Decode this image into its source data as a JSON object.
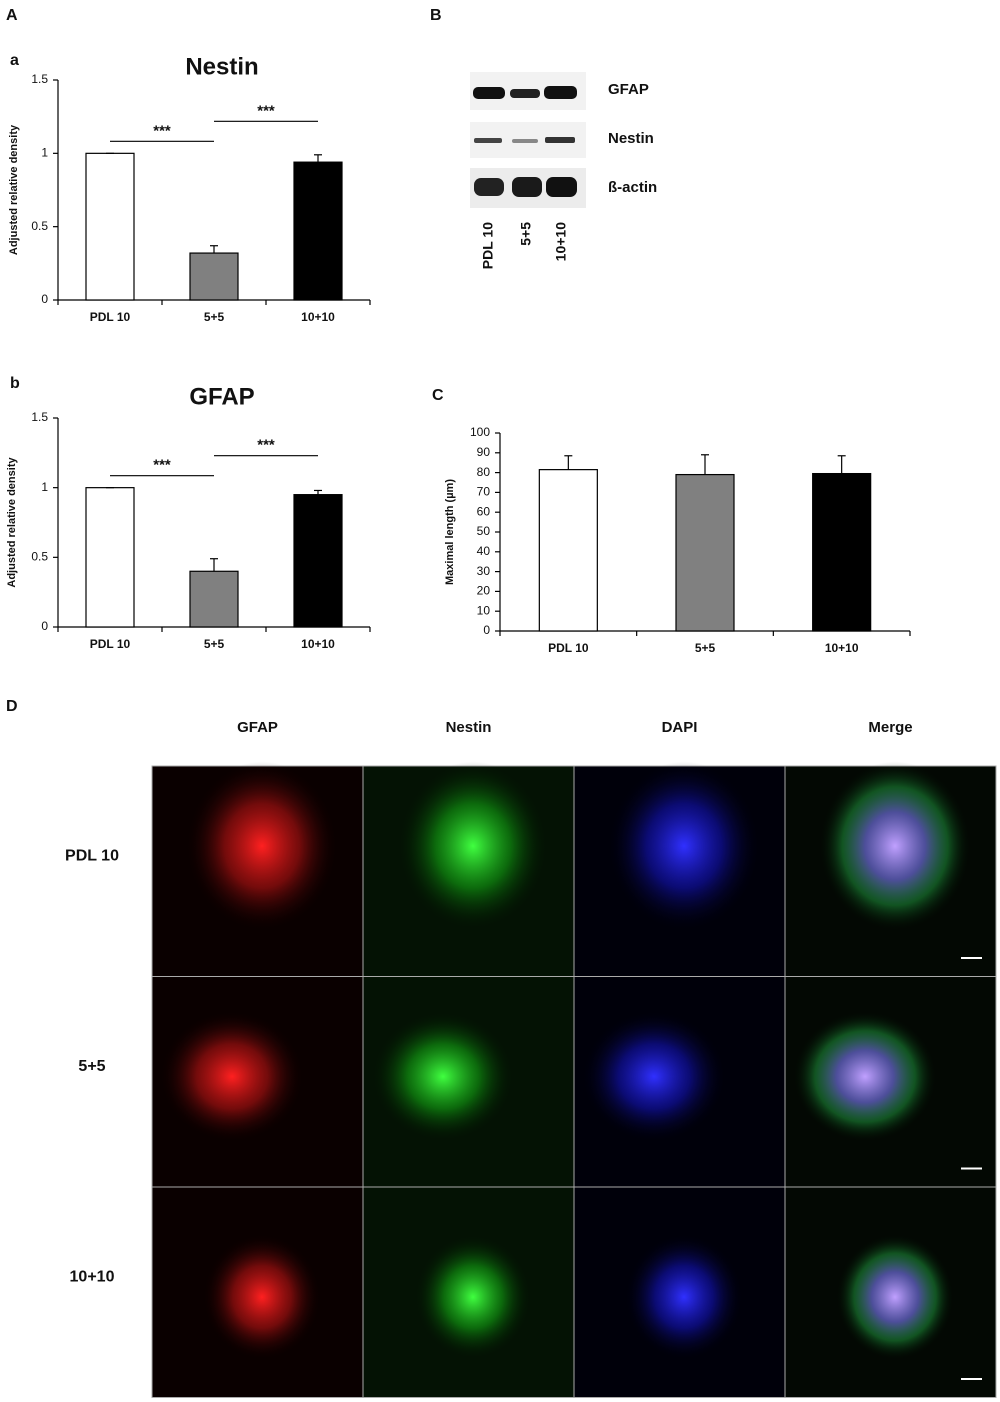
{
  "panel_labels": [
    "A",
    "a",
    "B",
    "b",
    "C",
    "D"
  ],
  "chart_data": [
    {
      "type": "bar",
      "title": "Nestin",
      "y_label": "Adjusted relative density",
      "categories": [
        "PDL 10",
        "5+5",
        "10+10"
      ],
      "values": [
        1,
        0.32,
        0.94
      ],
      "errors": [
        0,
        0.05,
        0.05
      ],
      "colors": [
        "#ffffff",
        "#808080",
        "#000000"
      ],
      "ylim": [
        0,
        1.5
      ],
      "yticks": [
        0,
        0.5,
        1,
        1.5
      ],
      "annotations": [
        "***",
        "***"
      ]
    },
    {
      "type": "bar",
      "title": "GFAP",
      "y_label": "Adjusted relative density",
      "categories": [
        "PDL 10",
        "5+5",
        "10+10"
      ],
      "values": [
        1,
        0.4,
        0.95
      ],
      "errors": [
        0,
        0.09,
        0.03
      ],
      "colors": [
        "#ffffff",
        "#808080",
        "#000000"
      ],
      "ylim": [
        0,
        1.5
      ],
      "yticks": [
        0,
        0.5,
        1,
        1.5
      ],
      "annotations": [
        "***",
        "***"
      ]
    },
    {
      "type": "bar",
      "y_label": "Maximal length (µm)",
      "categories": [
        "PDL 10",
        "5+5",
        "10+10"
      ],
      "values": [
        81.5,
        79,
        79.5
      ],
      "errors": [
        7,
        10,
        9
      ],
      "colors": [
        "#ffffff",
        "#808080",
        "#000000"
      ],
      "ylim": [
        0,
        100
      ],
      "yticks": [
        0,
        10,
        20,
        30,
        40,
        50,
        60,
        70,
        80,
        90,
        100
      ]
    }
  ],
  "blot": {
    "bands": [
      "GFAP",
      "Nestin",
      "ß-actin"
    ],
    "lanes": [
      "PDL 10",
      "5+5",
      "10+10"
    ]
  },
  "micrographs": {
    "columns": [
      "GFAP",
      "Nestin",
      "DAPI",
      "Merge"
    ],
    "rows": [
      "PDL 10",
      "5+5",
      "10+10"
    ]
  }
}
